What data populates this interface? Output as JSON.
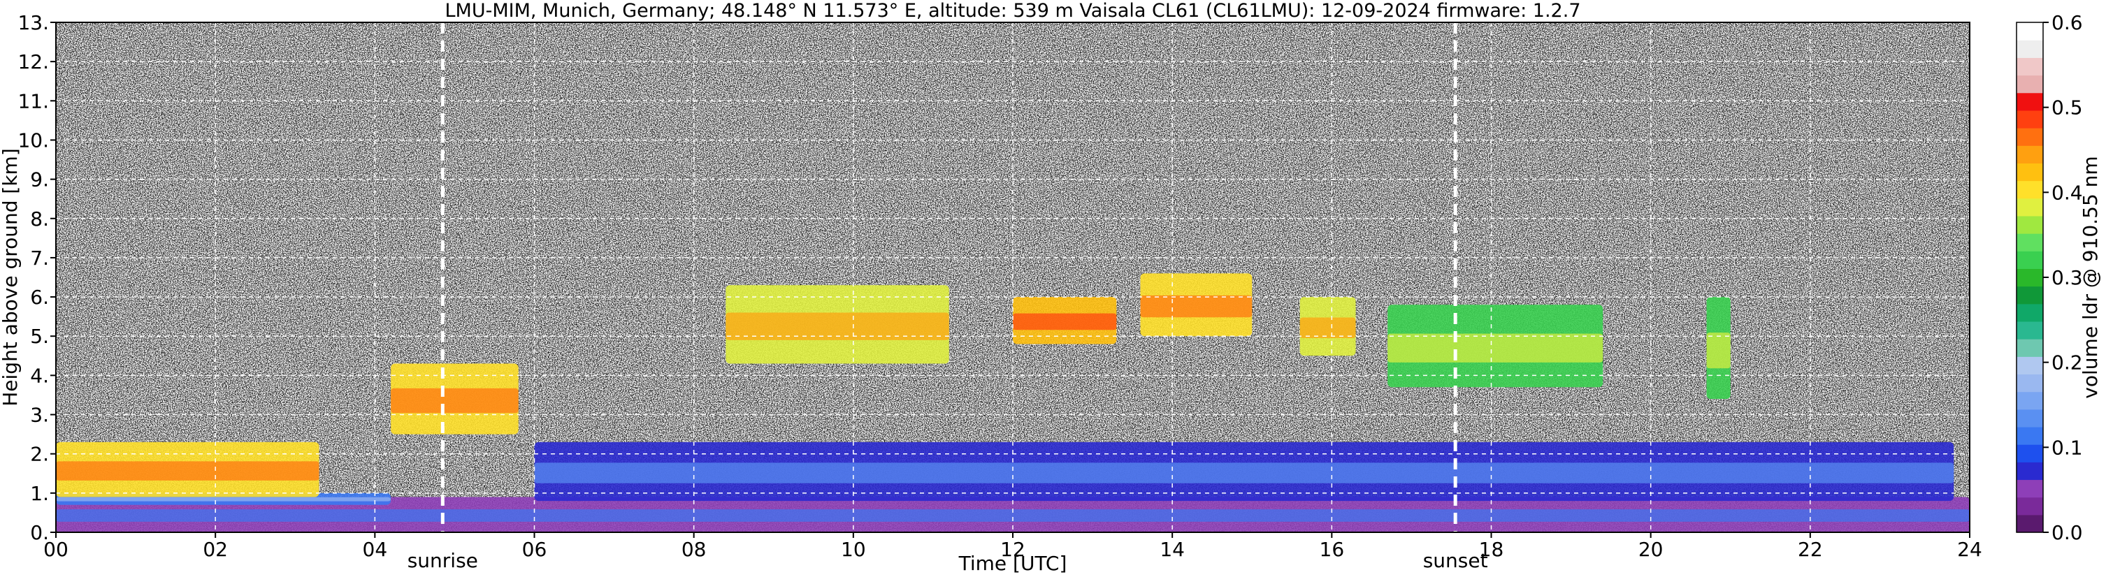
{
  "chart_data": {
    "type": "heatmap",
    "title": "LMU-MIM, Munich, Germany; 48.148° N 11.573° E, altitude: 539 m    Vaisala CL61 (CL61LMU): 12-09-2024    firmware: 1.2.7",
    "xlabel": "Time [UTC]",
    "ylabel": "Height above ground [km]",
    "xlim": [
      0,
      24
    ],
    "ylim": [
      0,
      13
    ],
    "x_ticks": [
      "00",
      "02",
      "04",
      "06",
      "08",
      "10",
      "12",
      "14",
      "16",
      "18",
      "20",
      "22",
      "24"
    ],
    "y_ticks": [
      "0.",
      "1.",
      "2.",
      "3.",
      "4.",
      "5.",
      "6.",
      "7.",
      "8.",
      "9.",
      "10.",
      "11.",
      "12.",
      "13."
    ],
    "grid": true,
    "colorbar": {
      "label": "volume ldr @ 910.55 nm",
      "range": [
        0.0,
        0.6
      ],
      "ticks": [
        "0.0",
        "0.1",
        "0.2",
        "0.3",
        "0.4",
        "0.5",
        "0.6"
      ],
      "colors": [
        "#5a1a6e",
        "#7a2a9a",
        "#8e3fb8",
        "#2a2ad0",
        "#1e50ee",
        "#3a78f2",
        "#5a90f2",
        "#7aa5f2",
        "#9ab8f0",
        "#b0c8f0",
        "#6ec8b0",
        "#2ab890",
        "#10a868",
        "#109838",
        "#2ab82a",
        "#3ad050",
        "#60e060",
        "#a0e840",
        "#e0f040",
        "#ffe02a",
        "#ffc010",
        "#ffa010",
        "#ff7010",
        "#ff4010",
        "#f01010",
        "#e8b0b0",
        "#f0c8c8",
        "#eeeeee",
        "#ffffff"
      ]
    },
    "annotations": [
      {
        "label": "sunrise",
        "time_utc": 4.85
      },
      {
        "label": "sunset",
        "time_utc": 17.55
      }
    ],
    "regions": [
      {
        "name": "boundary-layer-base",
        "t": [
          0,
          24
        ],
        "h": [
          0,
          0.9
        ],
        "ldr": 0.05
      },
      {
        "name": "low-layer-night",
        "t": [
          0,
          4.2
        ],
        "h": [
          0.7,
          1.0
        ],
        "ldr": 0.12
      },
      {
        "name": "aerosol-layer-night",
        "t": [
          0,
          3.3
        ],
        "h": [
          0.9,
          2.3
        ],
        "ldr": 0.4
      },
      {
        "name": "morning-cloud",
        "t": [
          4.2,
          5.8
        ],
        "h": [
          2.5,
          4.3
        ],
        "ldr": 0.4
      },
      {
        "name": "cirrus-1",
        "t": [
          8.4,
          11.2
        ],
        "h": [
          4.3,
          6.3
        ],
        "ldr": 0.38
      },
      {
        "name": "cirrus-2",
        "t": [
          12.0,
          13.3
        ],
        "h": [
          4.8,
          6.0
        ],
        "ldr": 0.42
      },
      {
        "name": "cirrus-3",
        "t": [
          13.6,
          15.0
        ],
        "h": [
          5.0,
          6.6
        ],
        "ldr": 0.4
      },
      {
        "name": "cirrus-4",
        "t": [
          15.6,
          16.3
        ],
        "h": [
          4.5,
          6.0
        ],
        "ldr": 0.38
      },
      {
        "name": "cirrus-5",
        "t": [
          16.7,
          19.4
        ],
        "h": [
          3.7,
          5.8
        ],
        "ldr": 0.33
      },
      {
        "name": "cirrus-6",
        "t": [
          20.7,
          21.0
        ],
        "h": [
          3.4,
          6.0
        ],
        "ldr": 0.32
      },
      {
        "name": "evening-boundary-layer",
        "t": [
          6.0,
          23.8
        ],
        "h": [
          0.8,
          2.3
        ],
        "ldr": 0.07
      }
    ]
  }
}
